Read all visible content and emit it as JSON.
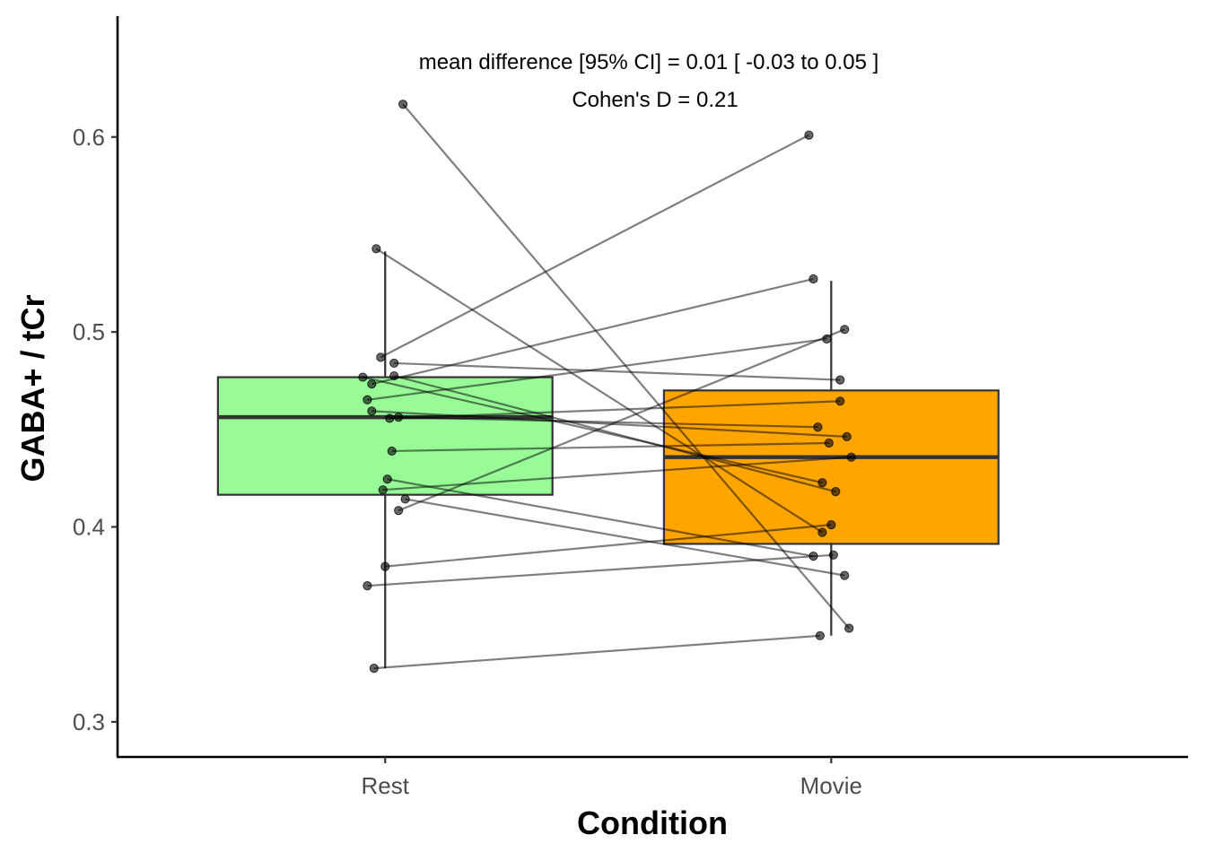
{
  "chart_data": {
    "type": "box",
    "xlabel": "Condition",
    "ylabel": "GABA+ / tCr",
    "categories": [
      "Rest",
      "Movie"
    ],
    "ylim": [
      0.282,
      0.662
    ],
    "yticks": [
      0.3,
      0.4,
      0.5,
      0.6
    ],
    "ytick_labels": [
      "0.3",
      "0.4",
      "0.5",
      "0.6"
    ],
    "annotations": [
      "mean difference [95% CI] =  0.01 [ -0.03  to  0.05 ]",
      "Cohen's D =  0.21"
    ],
    "boxes": [
      {
        "category": "Rest",
        "color": "#98fb98",
        "q1": 0.4165,
        "median": 0.4563,
        "q3": 0.4768,
        "whisker_low": 0.3275,
        "whisker_high": 0.5413
      },
      {
        "category": "Movie",
        "color": "#ffa500",
        "q1": 0.3913,
        "median": 0.4358,
        "q3": 0.47,
        "whisker_low": 0.3442,
        "whisker_high": 0.5262
      }
    ],
    "pairs": [
      {
        "rest": 0.6168,
        "movie": 0.348,
        "rest_jitter": 0.04,
        "movie_jitter": 0.04
      },
      {
        "rest": 0.5427,
        "movie": 0.3972,
        "rest_jitter": -0.02,
        "movie_jitter": -0.02
      },
      {
        "rest": 0.487,
        "movie": 0.601,
        "rest_jitter": -0.01,
        "movie_jitter": -0.05
      },
      {
        "rest": 0.484,
        "movie": 0.4754,
        "rest_jitter": 0.02,
        "movie_jitter": 0.02
      },
      {
        "rest": 0.4768,
        "movie": 0.4227,
        "rest_jitter": -0.05,
        "movie_jitter": -0.02
      },
      {
        "rest": 0.4775,
        "movie": 0.4181,
        "rest_jitter": 0.02,
        "movie_jitter": 0.01
      },
      {
        "rest": 0.4733,
        "movie": 0.5272,
        "rest_jitter": -0.03,
        "movie_jitter": -0.04
      },
      {
        "rest": 0.4652,
        "movie": 0.4964,
        "rest_jitter": -0.04,
        "movie_jitter": -0.01
      },
      {
        "rest": 0.4594,
        "movie": 0.4463,
        "rest_jitter": -0.03,
        "movie_jitter": 0.035
      },
      {
        "rest": 0.4557,
        "movie": 0.4645,
        "rest_jitter": 0.01,
        "movie_jitter": 0.02
      },
      {
        "rest": 0.4563,
        "movie": 0.4512,
        "rest_jitter": 0.03,
        "movie_jitter": -0.03
      },
      {
        "rest": 0.4389,
        "movie": 0.443,
        "rest_jitter": 0.015,
        "movie_jitter": -0.005
      },
      {
        "rest": 0.4245,
        "movie": 0.385,
        "rest_jitter": 0.005,
        "movie_jitter": -0.04
      },
      {
        "rest": 0.419,
        "movie": 0.4358,
        "rest_jitter": -0.005,
        "movie_jitter": 0.045
      },
      {
        "rest": 0.4143,
        "movie": 0.3751,
        "rest_jitter": 0.045,
        "movie_jitter": 0.03
      },
      {
        "rest": 0.4084,
        "movie": 0.5013,
        "rest_jitter": 0.03,
        "movie_jitter": 0.03
      },
      {
        "rest": 0.3797,
        "movie": 0.4011,
        "rest_jitter": 0.0,
        "movie_jitter": 0.0
      },
      {
        "rest": 0.3698,
        "movie": 0.3856,
        "rest_jitter": -0.04,
        "movie_jitter": 0.005
      },
      {
        "rest": 0.3275,
        "movie": 0.3442,
        "rest_jitter": -0.025,
        "movie_jitter": -0.025
      }
    ]
  }
}
